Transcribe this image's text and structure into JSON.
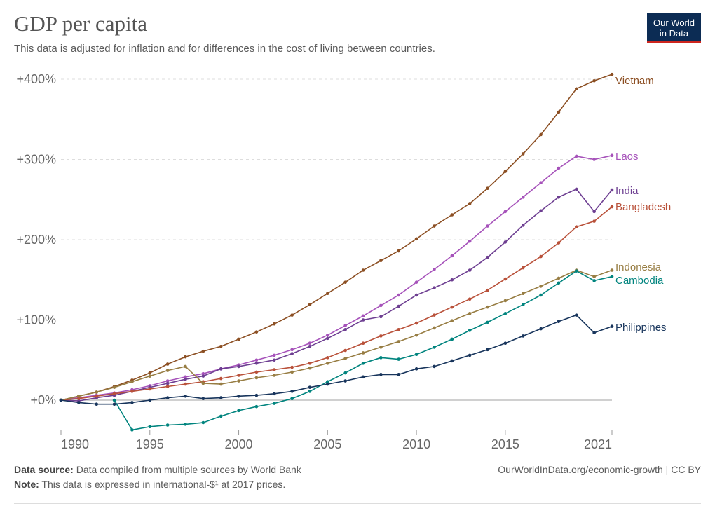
{
  "header": {
    "title": "GDP per capita",
    "subtitle": "This data is adjusted for inflation and for differences in the cost of living between countries.",
    "logo_line1": "Our World",
    "logo_line2": "in Data"
  },
  "footer": {
    "source_label": "Data source:",
    "source_text": "Data compiled from multiple sources by World Bank",
    "note_label": "Note:",
    "note_text": "This data is expressed in international-$¹ at 2017 prices.",
    "link_text": "OurWorldInData.org/economic-growth",
    "separator": "|",
    "license_text": "CC BY"
  },
  "chart_data": {
    "type": "line",
    "title": "GDP per capita",
    "xlabel": "",
    "ylabel": "",
    "x_ticks": [
      1990,
      1995,
      2000,
      2005,
      2010,
      2015,
      2021
    ],
    "y_ticks": [
      0,
      100,
      200,
      300,
      400
    ],
    "y_tick_labels": [
      "+0%",
      "+100%",
      "+200%",
      "+300%",
      "+400%"
    ],
    "xlim": [
      1990,
      2021
    ],
    "ylim": [
      -40,
      410
    ],
    "grid": "horizontal-dashed",
    "legend": "end-of-line labels",
    "x": [
      1990,
      1991,
      1992,
      1993,
      1994,
      1995,
      1996,
      1997,
      1998,
      1999,
      2000,
      2001,
      2002,
      2003,
      2004,
      2005,
      2006,
      2007,
      2008,
      2009,
      2010,
      2011,
      2012,
      2013,
      2014,
      2015,
      2016,
      2017,
      2018,
      2019,
      2020,
      2021
    ],
    "series": [
      {
        "name": "Vietnam",
        "color": "#8c4f23",
        "values": [
          0,
          5,
          10,
          17,
          25,
          34,
          45,
          54,
          61,
          67,
          76,
          85,
          95,
          106,
          119,
          133,
          147,
          162,
          174,
          186,
          201,
          217,
          231,
          245,
          264,
          285,
          307,
          331,
          359,
          388,
          398,
          406
        ]
      },
      {
        "name": "Laos",
        "color": "#a652ba",
        "values": [
          0,
          3,
          6,
          9,
          13,
          18,
          24,
          29,
          33,
          39,
          44,
          50,
          56,
          63,
          71,
          81,
          93,
          105,
          118,
          131,
          147,
          163,
          180,
          198,
          217,
          235,
          253,
          271,
          289,
          304,
          300,
          305
        ]
      },
      {
        "name": "India",
        "color": "#6d3e91",
        "values": [
          0,
          -1,
          3,
          6,
          11,
          16,
          21,
          26,
          30,
          39,
          42,
          46,
          50,
          58,
          67,
          77,
          88,
          100,
          104,
          117,
          131,
          140,
          150,
          162,
          178,
          197,
          218,
          236,
          253,
          263,
          235,
          262
        ]
      },
      {
        "name": "Bangladesh",
        "color": "#b9513a",
        "values": [
          0,
          2,
          5,
          8,
          11,
          14,
          17,
          20,
          23,
          27,
          31,
          35,
          38,
          41,
          46,
          53,
          62,
          71,
          80,
          88,
          96,
          106,
          116,
          126,
          137,
          151,
          165,
          179,
          196,
          216,
          223,
          241
        ]
      },
      {
        "name": "Indonesia",
        "color": "#977d43",
        "values": [
          0,
          5,
          10,
          16,
          23,
          30,
          37,
          42,
          21,
          20,
          24,
          28,
          31,
          35,
          40,
          46,
          52,
          59,
          66,
          73,
          81,
          90,
          99,
          108,
          116,
          124,
          133,
          142,
          152,
          162,
          154,
          162
        ]
      },
      {
        "name": "Cambodia",
        "color": "#00847e",
        "values": [
          0,
          null,
          null,
          0,
          -37,
          -33,
          -31,
          -30,
          -28,
          -20,
          -13,
          -8,
          -4,
          2,
          11,
          23,
          34,
          46,
          53,
          51,
          57,
          66,
          76,
          87,
          97,
          108,
          119,
          131,
          146,
          161,
          149,
          154
        ]
      },
      {
        "name": "Philippines",
        "color": "#18355c",
        "values": [
          0,
          -3,
          -5,
          -5,
          -3,
          0,
          3,
          5,
          2,
          3,
          5,
          6,
          8,
          11,
          16,
          20,
          24,
          29,
          32,
          32,
          39,
          42,
          49,
          56,
          63,
          71,
          80,
          89,
          98,
          106,
          84,
          92
        ]
      }
    ],
    "line_labels": [
      "Vietnam",
      "Laos",
      "India",
      "Bangladesh",
      "Indonesia",
      "Cambodia",
      "Philippines"
    ]
  }
}
